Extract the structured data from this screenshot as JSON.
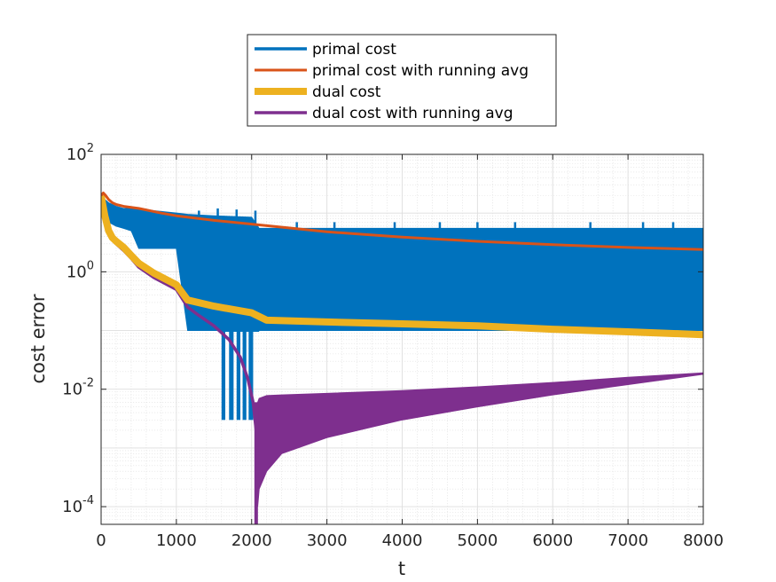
{
  "chart_data": {
    "type": "line",
    "title": "",
    "xlabel": "t",
    "ylabel": "cost error",
    "xlim": [
      0,
      8000
    ],
    "ylim": [
      5e-05,
      100
    ],
    "yscale": "log",
    "grid": true,
    "minor_grid": true,
    "legend_position": "top-center-outside",
    "x_ticks": [
      "0",
      "1000",
      "2000",
      "3000",
      "4000",
      "5000",
      "6000",
      "7000",
      "8000"
    ],
    "y_ticks": [
      {
        "base": "10",
        "exp": "2"
      },
      {
        "base": "10",
        "exp": "0"
      },
      {
        "base": "10",
        "exp": "-2"
      },
      {
        "base": "10",
        "exp": "-4"
      }
    ],
    "series": [
      {
        "name": "primal cost",
        "color": "#0072BD",
        "line_width": 3.5,
        "x": [
          0,
          50,
          100,
          200,
          300,
          400,
          500,
          700,
          1000,
          1150,
          1500,
          2000,
          2100,
          3000,
          4000,
          5000,
          6000,
          7000,
          8000
        ],
        "upper": [
          20,
          17,
          15,
          13,
          12,
          12,
          12,
          11,
          10,
          9.5,
          9,
          8.5,
          5.5,
          5.5,
          5.5,
          5.5,
          5.5,
          5.5,
          5.5
        ],
        "lower": [
          20,
          10,
          7,
          6,
          5.5,
          5,
          2.5,
          2.5,
          2.5,
          0.1,
          0.1,
          0.1,
          0.1,
          0.1,
          0.1,
          0.1,
          0.1,
          0.1,
          0.1
        ],
        "spikes_up": [
          {
            "x": 1300,
            "y": 11
          },
          {
            "x": 1550,
            "y": 12
          },
          {
            "x": 1800,
            "y": 11.5
          },
          {
            "x": 2050,
            "y": 11
          },
          {
            "x": 2600,
            "y": 7
          },
          {
            "x": 3100,
            "y": 7
          },
          {
            "x": 3900,
            "y": 7
          },
          {
            "x": 4500,
            "y": 7
          },
          {
            "x": 5000,
            "y": 7
          },
          {
            "x": 5500,
            "y": 7
          },
          {
            "x": 6500,
            "y": 7
          },
          {
            "x": 7200,
            "y": 7
          },
          {
            "x": 7600,
            "y": 7
          }
        ],
        "spikes_down": [
          {
            "x": 1600,
            "x2": 1650,
            "y": 0.003
          },
          {
            "x": 1700,
            "x2": 1760,
            "y": 0.003
          },
          {
            "x": 1800,
            "x2": 1850,
            "y": 0.003
          },
          {
            "x": 1880,
            "x2": 1930,
            "y": 0.003
          },
          {
            "x": 1960,
            "x2": 2020,
            "y": 0.003
          }
        ]
      },
      {
        "name": "primal cost with running avg",
        "color": "#D95319",
        "line_width": 3,
        "x": [
          0,
          30,
          60,
          100,
          150,
          200,
          300,
          500,
          800,
          1000,
          1500,
          2000,
          3000,
          4000,
          5000,
          6000,
          7000,
          8000
        ],
        "y": [
          20,
          22,
          20,
          17,
          15,
          14,
          13,
          12,
          10,
          9,
          7.5,
          6.5,
          4.8,
          3.9,
          3.3,
          2.9,
          2.6,
          2.4
        ]
      },
      {
        "name": "dual cost",
        "color": "#EDB120",
        "line_width": 8,
        "x": [
          0,
          50,
          100,
          150,
          200,
          300,
          400,
          500,
          700,
          1000,
          1150,
          1500,
          2000,
          2200,
          3000,
          4000,
          5000,
          6000,
          7000,
          8000
        ],
        "y": [
          20,
          9,
          5,
          3.8,
          3.3,
          2.6,
          1.9,
          1.4,
          0.95,
          0.6,
          0.33,
          0.26,
          0.2,
          0.15,
          0.14,
          0.13,
          0.12,
          0.105,
          0.095,
          0.085
        ]
      },
      {
        "name": "dual cost with running avg",
        "color": "#7E2F8E",
        "line_width": 3.5,
        "x": [
          0,
          50,
          100,
          150,
          200,
          300,
          400,
          500,
          700,
          1000,
          1150,
          1300,
          1500,
          1700,
          1850,
          1950,
          2020,
          2060
        ],
        "y": [
          20,
          8,
          4.5,
          3.5,
          3,
          2.3,
          1.7,
          1.2,
          0.8,
          0.5,
          0.25,
          0.18,
          0.12,
          0.07,
          0.035,
          0.015,
          0.006,
          0.002
        ],
        "band_x": [
          2080,
          2100,
          2200,
          2400,
          3000,
          4000,
          5000,
          6000,
          7000,
          8000
        ],
        "band_upper": [
          0.006,
          0.007,
          0.0078,
          0.008,
          0.0085,
          0.0095,
          0.011,
          0.013,
          0.016,
          0.019
        ],
        "band_lower": [
          0.0001,
          0.0002,
          0.0004,
          0.0008,
          0.0015,
          0.003,
          0.005,
          0.008,
          0.012,
          0.018
        ],
        "min_spike": {
          "x": 2060,
          "y": 4e-05
        }
      }
    ]
  }
}
